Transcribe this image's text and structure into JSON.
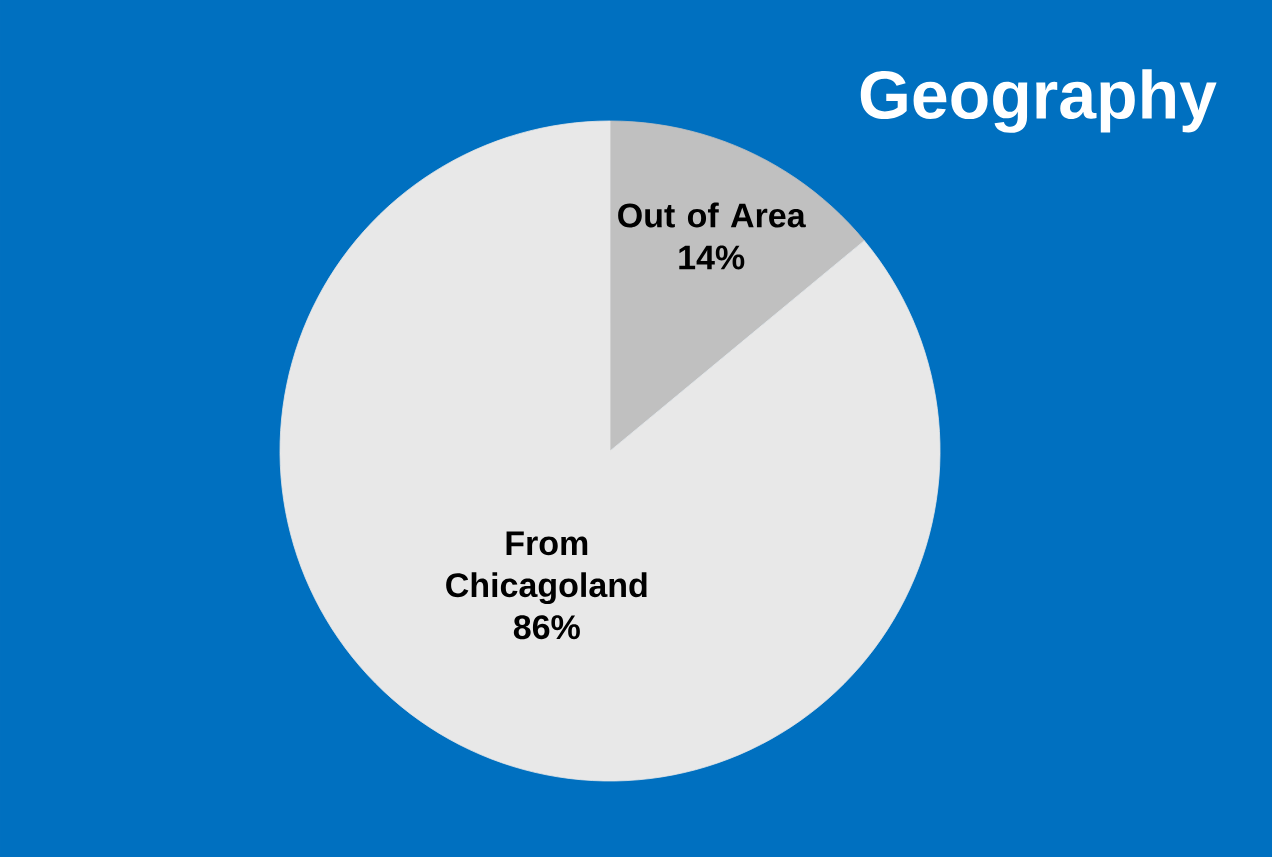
{
  "chart_data": {
    "type": "pie",
    "title": "Geography",
    "categories": [
      "Out of Area",
      "From Chicagoland"
    ],
    "values": [
      14,
      86
    ],
    "colors": [
      "#c0c0c0",
      "#e8e8e8"
    ],
    "value_labels": [
      "14%",
      "86%"
    ]
  }
}
